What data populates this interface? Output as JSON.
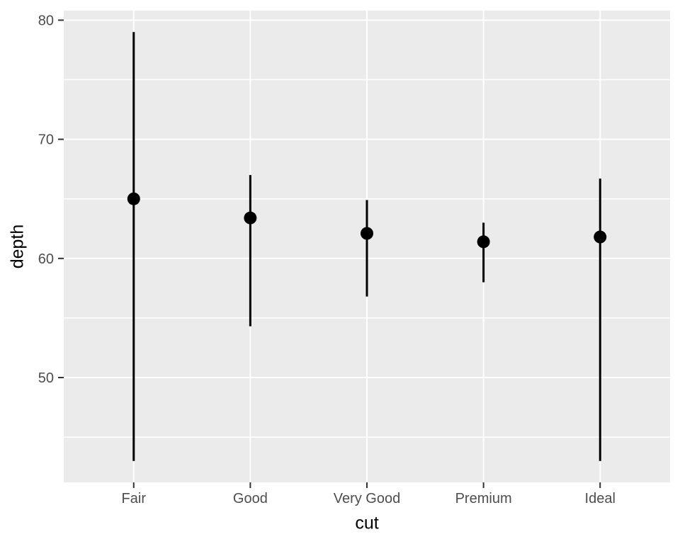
{
  "chart_data": {
    "type": "pointrange",
    "title": "",
    "xlabel": "cut",
    "ylabel": "depth",
    "categories": [
      "Fair",
      "Good",
      "Very Good",
      "Premium",
      "Ideal"
    ],
    "series": [
      {
        "category": "Fair",
        "median": 65.0,
        "min": 43.0,
        "max": 79.0
      },
      {
        "category": "Good",
        "median": 63.4,
        "min": 54.3,
        "max": 67.0
      },
      {
        "category": "Very Good",
        "median": 62.1,
        "min": 56.8,
        "max": 64.9
      },
      {
        "category": "Premium",
        "median": 61.4,
        "min": 58.0,
        "max": 63.0
      },
      {
        "category": "Ideal",
        "median": 61.8,
        "min": 43.0,
        "max": 66.7
      }
    ],
    "y_ticks": [
      50,
      60,
      70,
      80
    ],
    "y_minor_ticks": [
      45,
      55,
      65,
      75
    ],
    "ylim": [
      41.2,
      80.8
    ],
    "grid": true,
    "legend": "none",
    "colors": {
      "figure_background": "#FFFFFF",
      "panel_background": "#EBEBEB",
      "gridline": "#FFFFFF",
      "point": "#000000",
      "axis_text": "#4D4D4D",
      "tick_mark": "#333333",
      "axis_title": "#000000"
    }
  }
}
